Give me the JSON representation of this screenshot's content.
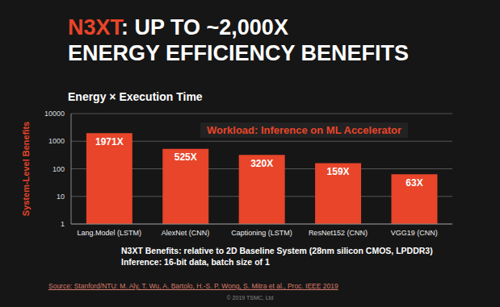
{
  "chart_data": {
    "type": "bar",
    "title": [
      "N3XT: UP TO ~2,000X",
      "ENERGY EFFICIENCY BENEFITS"
    ],
    "subtitle": "Energy × Execution Time",
    "y_label": "System-Level Benefits",
    "annotations": [
      "Workload: Inference on ML Accelerator",
      "N3XT Benefits: relative to 2D Baseline System (28nm silicon CMOS, LPDDR3)",
      "Inference: 16-bit data, batch size of 1",
      "Source: Stanford/NTU: M. Aly, T. Wu, A. Bartolo, H.-S. P. Wong, S. Mitra et al., Proc. IEEE 2019",
      "© 2019 TSMC, Ltd"
    ],
    "categories": [
      "Lang.Model (LSTM)",
      "AlexNet (CNN)",
      "Captioning (LSTM)",
      "ResNet152 (CNN)",
      "VGG19 (CNN)"
    ],
    "values": [
      1971,
      525,
      320,
      159,
      63
    ],
    "value_labels": [
      "1971X",
      "525X",
      "320X",
      "159X",
      "63X"
    ],
    "data_labels": true,
    "color": "#e8452a",
    "log": "y",
    "ylim": [
      1,
      10000
    ],
    "yticks": [
      1,
      10,
      100,
      1000,
      10000
    ],
    "grid": true
  }
}
